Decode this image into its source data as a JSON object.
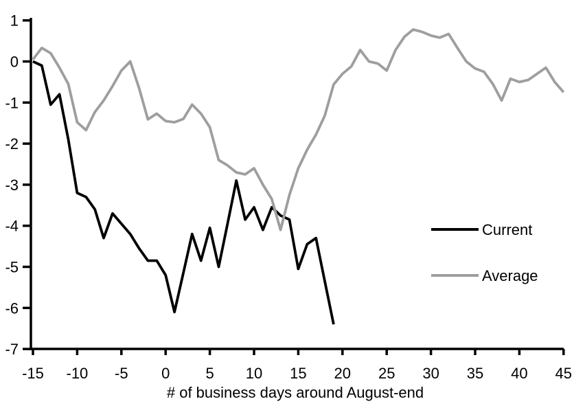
{
  "chart": {
    "background": "#ffffff",
    "axis_color": "#000000",
    "x_tick_labels": [
      "-15",
      "-10",
      "-5",
      "0",
      "5",
      "10",
      "15",
      "20",
      "25",
      "30",
      "35",
      "40",
      "45"
    ],
    "x_tick_values": [
      -15,
      -10,
      -5,
      0,
      5,
      10,
      15,
      20,
      25,
      30,
      35,
      40,
      45
    ],
    "y_tick_labels": [
      "1",
      "0",
      "-1",
      "-2",
      "-3",
      "-4",
      "-5",
      "-6",
      "-7"
    ],
    "y_tick_values": [
      1,
      0,
      -1,
      -2,
      -3,
      -4,
      -5,
      -6,
      -7
    ],
    "legend": [
      {
        "label": "Current",
        "color": "#000000"
      },
      {
        "label": "Average",
        "color": "#9e9e9e"
      }
    ]
  },
  "chart_data": {
    "type": "line",
    "title": "",
    "xlabel": "# of business days around August-end",
    "ylabel": "",
    "xlim": [
      -15,
      45
    ],
    "ylim": [
      -7,
      1
    ],
    "grid": false,
    "legend_position": "middle-right",
    "x_ticks": [
      -15,
      -10,
      -5,
      0,
      5,
      10,
      15,
      20,
      25,
      30,
      35,
      40,
      45
    ],
    "y_ticks": [
      1,
      0,
      -1,
      -2,
      -3,
      -4,
      -5,
      -6,
      -7
    ],
    "series": [
      {
        "name": "Current",
        "color": "#000000",
        "x": [
          -15,
          -14,
          -13,
          -12,
          -11,
          -10,
          -9,
          -8,
          -7,
          -6,
          -5,
          -4,
          -3,
          -2,
          -1,
          0,
          1,
          2,
          3,
          4,
          5,
          6,
          7,
          8,
          9,
          10,
          11,
          12,
          13,
          14,
          15,
          16,
          17,
          18,
          19
        ],
        "values": [
          0.0,
          -0.1,
          -1.05,
          -0.8,
          -1.9,
          -3.2,
          -3.3,
          -3.6,
          -4.3,
          -3.7,
          -3.95,
          -4.2,
          -4.55,
          -4.85,
          -4.85,
          -5.2,
          -6.1,
          -5.15,
          -4.2,
          -4.85,
          -4.05,
          -5.0,
          -3.95,
          -2.9,
          -3.85,
          -3.55,
          -4.1,
          -3.55,
          -3.75,
          -3.85,
          -5.05,
          -4.45,
          -4.3,
          -5.35,
          -6.4
        ]
      },
      {
        "name": "Average",
        "color": "#9e9e9e",
        "x": [
          -15,
          -14,
          -13,
          -12,
          -11,
          -10,
          -9,
          -8,
          -7,
          -6,
          -5,
          -4,
          -3,
          -2,
          -1,
          0,
          1,
          2,
          3,
          4,
          5,
          6,
          7,
          8,
          9,
          10,
          11,
          12,
          13,
          14,
          15,
          16,
          17,
          18,
          19,
          20,
          21,
          22,
          23,
          24,
          25,
          26,
          27,
          28,
          29,
          30,
          31,
          32,
          33,
          34,
          35,
          36,
          37,
          38,
          39,
          40,
          41,
          42,
          43,
          44,
          45
        ],
        "values": [
          0.05,
          0.33,
          0.2,
          -0.15,
          -0.55,
          -1.48,
          -1.67,
          -1.23,
          -0.95,
          -0.6,
          -0.22,
          0.0,
          -0.65,
          -1.41,
          -1.27,
          -1.45,
          -1.48,
          -1.4,
          -1.05,
          -1.27,
          -1.6,
          -2.4,
          -2.53,
          -2.7,
          -2.75,
          -2.6,
          -3.0,
          -3.35,
          -4.1,
          -3.25,
          -2.6,
          -2.15,
          -1.78,
          -1.32,
          -0.56,
          -0.3,
          -0.12,
          0.28,
          0.0,
          -0.05,
          -0.22,
          0.28,
          0.6,
          0.78,
          0.72,
          0.63,
          0.58,
          0.67,
          0.33,
          0.0,
          -0.17,
          -0.25,
          -0.55,
          -0.95,
          -0.42,
          -0.5,
          -0.45,
          -0.3,
          -0.15,
          -0.5,
          -0.75
        ]
      }
    ]
  }
}
